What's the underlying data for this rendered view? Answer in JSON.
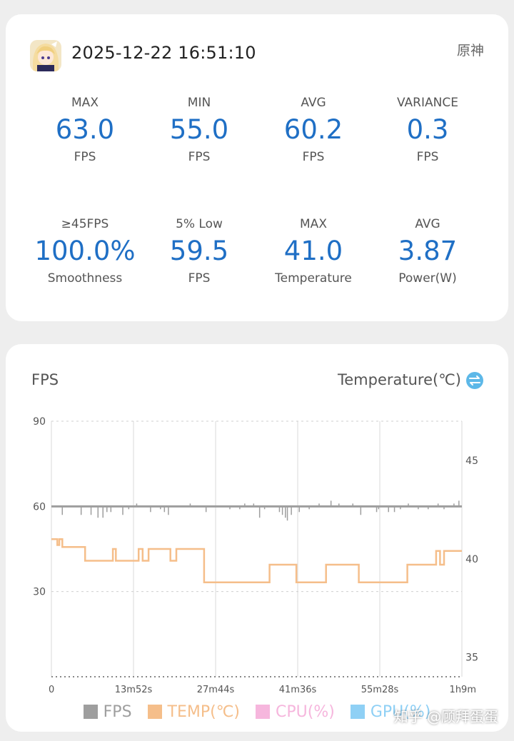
{
  "header": {
    "datetime": "2025-12-22 16:51:10",
    "game_name": "原神"
  },
  "stats": [
    {
      "label": "MAX",
      "value": "63.0",
      "unit": "FPS"
    },
    {
      "label": "MIN",
      "value": "55.0",
      "unit": "FPS"
    },
    {
      "label": "AVG",
      "value": "60.2",
      "unit": "FPS"
    },
    {
      "label": "VARIANCE",
      "value": "0.3",
      "unit": "FPS"
    },
    {
      "label": "≥45FPS",
      "value": "100.0%",
      "unit": "Smoothness"
    },
    {
      "label": "5% Low",
      "value": "59.5",
      "unit": "FPS"
    },
    {
      "label": "MAX",
      "value": "41.0",
      "unit": "Temperature"
    },
    {
      "label": "AVG",
      "value": "3.87",
      "unit": "Power(W)"
    }
  ],
  "colors": {
    "accent": "#1f6fc5",
    "fps": "#9e9e9e",
    "temp": "#f5be8a",
    "cpu": "#f6b6dd",
    "gpu": "#8fd0f5",
    "swap_icon": "#5db8e8"
  },
  "chart": {
    "left_axis_title": "FPS",
    "right_axis_title": "Temperature(℃)",
    "swap_icon": "swap-arrows-icon",
    "watermark": "知乎 @顾拜蛋蛋"
  },
  "chart_data": {
    "type": "line",
    "x_tick_labels": [
      "0",
      "13m52s",
      "27m44s",
      "41m36s",
      "55m28s",
      "1h9m"
    ],
    "x_range_seconds": [
      0,
      4140
    ],
    "y_left": {
      "ticks": [
        90,
        60,
        30
      ],
      "ylim": [
        0,
        90
      ]
    },
    "y_right": {
      "ticks": [
        45,
        40,
        35
      ],
      "ylim": [
        34,
        47
      ]
    },
    "grid": true,
    "legend_position": "bottom",
    "series": [
      {
        "name": "FPS",
        "axis": "left",
        "baseline": 60,
        "spikes": [
          [
            110,
            57
          ],
          [
            300,
            57
          ],
          [
            400,
            57
          ],
          [
            470,
            56
          ],
          [
            520,
            56
          ],
          [
            560,
            58
          ],
          [
            600,
            58
          ],
          [
            720,
            57
          ],
          [
            780,
            59
          ],
          [
            860,
            61
          ],
          [
            1000,
            58
          ],
          [
            1100,
            59
          ],
          [
            1140,
            58
          ],
          [
            1180,
            57
          ],
          [
            1400,
            61
          ],
          [
            1560,
            58
          ],
          [
            1800,
            59
          ],
          [
            1900,
            59
          ],
          [
            1950,
            61
          ],
          [
            2040,
            61
          ],
          [
            2100,
            56
          ],
          [
            2150,
            59
          ],
          [
            2300,
            58
          ],
          [
            2330,
            57
          ],
          [
            2360,
            56
          ],
          [
            2380,
            55
          ],
          [
            2420,
            57
          ],
          [
            2500,
            58
          ],
          [
            2600,
            59
          ],
          [
            2700,
            61
          ],
          [
            2820,
            62
          ],
          [
            2900,
            61
          ],
          [
            3040,
            61
          ],
          [
            3120,
            57
          ],
          [
            3280,
            58
          ],
          [
            3300,
            59
          ],
          [
            3400,
            58
          ],
          [
            3460,
            58
          ],
          [
            3520,
            59
          ],
          [
            3600,
            61
          ],
          [
            3700,
            59
          ],
          [
            3800,
            59
          ],
          [
            3900,
            61
          ],
          [
            3960,
            59
          ],
          [
            4060,
            61
          ],
          [
            4110,
            62
          ]
        ]
      },
      {
        "name": "TEMP(℃)",
        "axis": "right",
        "values": [
          [
            0,
            41
          ],
          [
            60,
            41
          ],
          [
            60,
            40.7
          ],
          [
            80,
            40.7
          ],
          [
            80,
            41
          ],
          [
            110,
            41
          ],
          [
            110,
            40.6
          ],
          [
            340,
            40.6
          ],
          [
            340,
            39.9
          ],
          [
            620,
            39.9
          ],
          [
            620,
            40.5
          ],
          [
            650,
            40.5
          ],
          [
            650,
            39.9
          ],
          [
            880,
            39.9
          ],
          [
            880,
            40.5
          ],
          [
            920,
            40.5
          ],
          [
            920,
            39.9
          ],
          [
            980,
            39.9
          ],
          [
            980,
            40.5
          ],
          [
            1200,
            40.5
          ],
          [
            1200,
            39.9
          ],
          [
            1260,
            39.9
          ],
          [
            1260,
            40.5
          ],
          [
            1540,
            40.5
          ],
          [
            1540,
            38.8
          ],
          [
            2200,
            38.8
          ],
          [
            2200,
            39.7
          ],
          [
            2470,
            39.7
          ],
          [
            2470,
            38.8
          ],
          [
            2770,
            38.8
          ],
          [
            2770,
            39.7
          ],
          [
            3100,
            39.7
          ],
          [
            3100,
            38.8
          ],
          [
            3590,
            38.8
          ],
          [
            3590,
            39.7
          ],
          [
            3880,
            39.7
          ],
          [
            3880,
            40.4
          ],
          [
            3920,
            40.4
          ],
          [
            3920,
            39.7
          ],
          [
            3960,
            39.7
          ],
          [
            3960,
            40.4
          ],
          [
            4140,
            40.4
          ]
        ]
      }
    ],
    "legend": [
      {
        "name": "FPS",
        "color": "#9e9e9e"
      },
      {
        "name": "TEMP(℃)",
        "color": "#f5be8a"
      },
      {
        "name": "CPU(%)",
        "color": "#f6b6dd"
      },
      {
        "name": "GPU(%)",
        "color": "#8fd0f5"
      }
    ]
  }
}
